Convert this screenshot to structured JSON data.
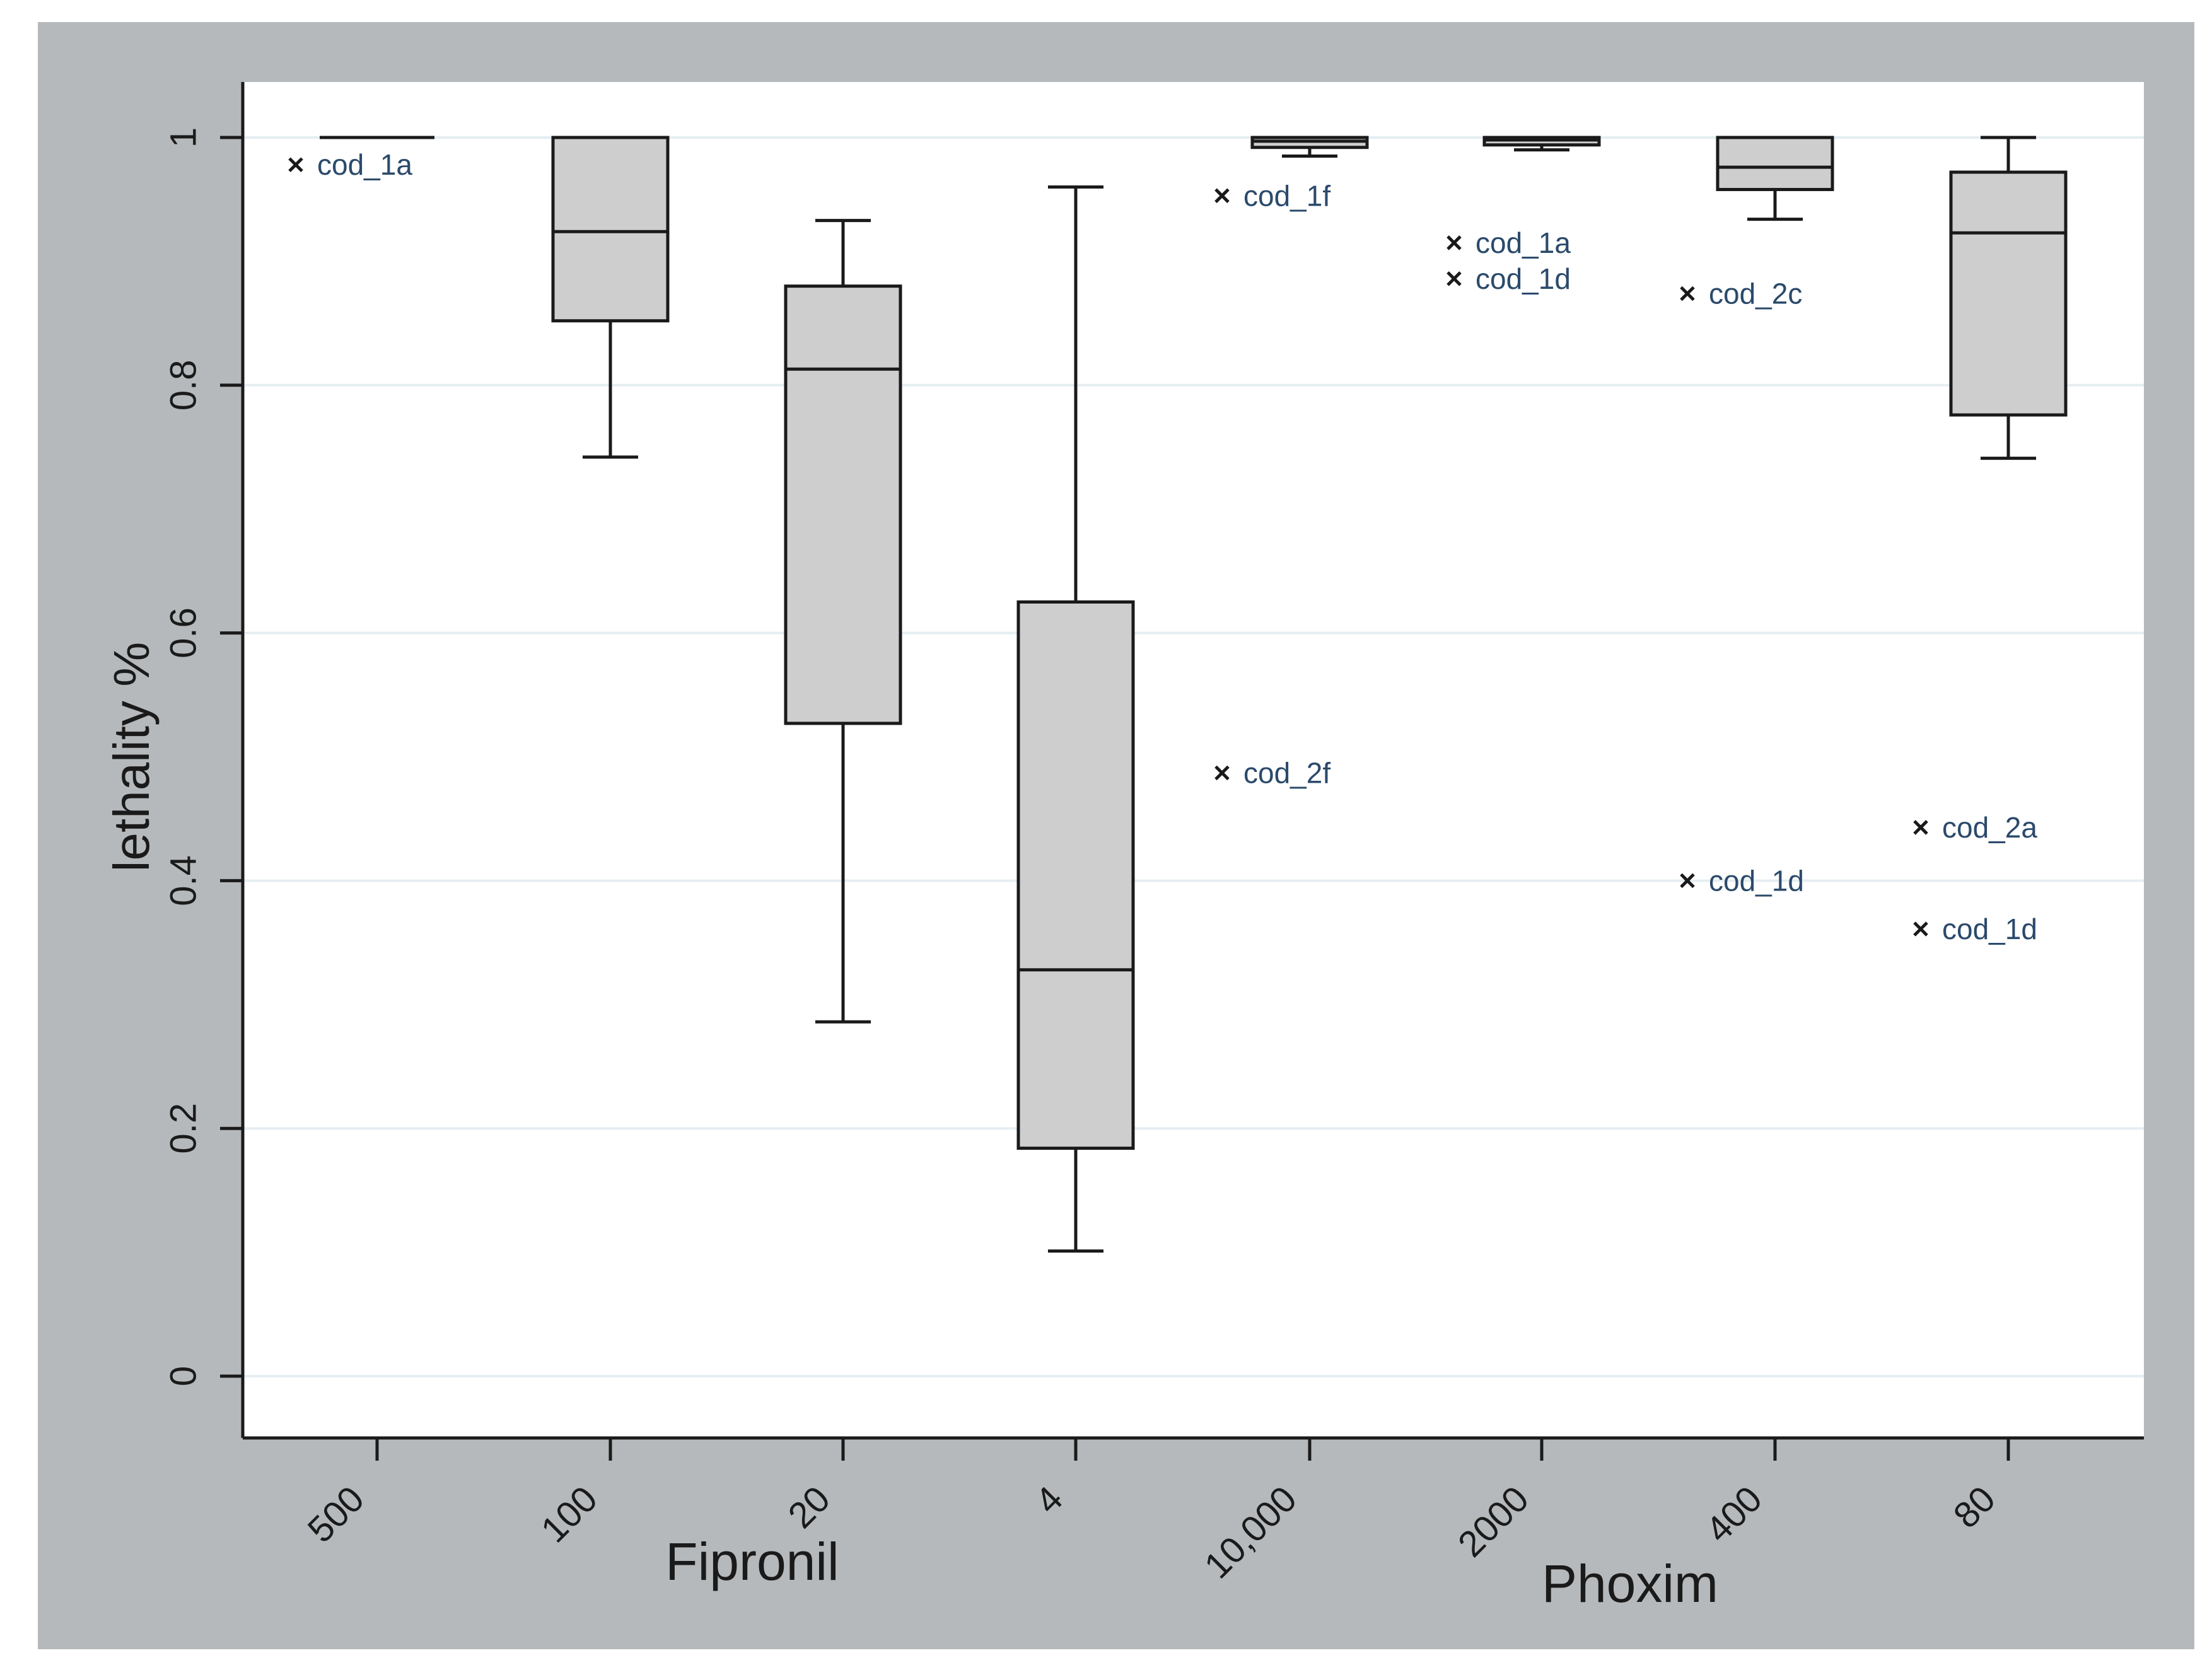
{
  "chart_data": {
    "type": "box",
    "title": "",
    "xlabel": "",
    "ylabel": "lethality %",
    "ylim": [
      0,
      1
    ],
    "yticks": [
      {
        "value": 0,
        "label": "0"
      },
      {
        "value": 0.2,
        "label": "0.2"
      },
      {
        "value": 0.4,
        "label": "0.4"
      },
      {
        "value": 0.6,
        "label": "0.6"
      },
      {
        "value": 0.8,
        "label": "0.8"
      },
      {
        "value": 1,
        "label": "1"
      }
    ],
    "grid": true,
    "groups": [
      {
        "name": "Fipronil",
        "categories": [
          "500",
          "100",
          "20",
          "4"
        ]
      },
      {
        "name": "Phoxim",
        "categories": [
          "10,000",
          "2000",
          "400",
          "80"
        ]
      }
    ],
    "categories": [
      "500",
      "100",
      "20",
      "4",
      "10,000",
      "2000",
      "400",
      "80"
    ],
    "boxes": [
      {
        "category": "500",
        "min": 1.0,
        "q1": 1.0,
        "median": 1.0,
        "q3": 1.0,
        "max": 1.0,
        "outliers": [
          {
            "value": 0.978,
            "label": "cod_1a"
          }
        ]
      },
      {
        "category": "100",
        "min": 0.742,
        "q1": 0.852,
        "median": 0.924,
        "q3": 1.0,
        "max": 1.0,
        "outliers": []
      },
      {
        "category": "20",
        "min": 0.286,
        "q1": 0.527,
        "median": 0.813,
        "q3": 0.88,
        "max": 0.933,
        "outliers": []
      },
      {
        "category": "4",
        "min": 0.101,
        "q1": 0.184,
        "median": 0.328,
        "q3": 0.625,
        "max": 0.96,
        "outliers": []
      },
      {
        "category": "10,000",
        "min": 0.985,
        "q1": 0.992,
        "median": 0.997,
        "q3": 1.0,
        "max": 1.0,
        "outliers": [
          {
            "value": 0.953,
            "label": "cod_1f"
          },
          {
            "value": 0.487,
            "label": "cod_2f"
          }
        ]
      },
      {
        "category": "2000",
        "min": 0.99,
        "q1": 0.994,
        "median": 0.998,
        "q3": 1.0,
        "max": 1.0,
        "outliers": [
          {
            "value": 0.915,
            "label": "cod_1a"
          },
          {
            "value": 0.886,
            "label": "cod_1d"
          }
        ]
      },
      {
        "category": "400",
        "min": 0.934,
        "q1": 0.958,
        "median": 0.976,
        "q3": 1.0,
        "max": 1.0,
        "outliers": [
          {
            "value": 0.874,
            "label": "cod_2c"
          },
          {
            "value": 0.4,
            "label": "cod_1d"
          }
        ]
      },
      {
        "category": "80",
        "min": 0.741,
        "q1": 0.776,
        "median": 0.923,
        "q3": 0.972,
        "max": 1.0,
        "outliers": [
          {
            "value": 0.443,
            "label": "cod_2a"
          },
          {
            "value": 0.361,
            "label": "cod_1d"
          }
        ]
      }
    ],
    "colors": {
      "frame": "#b6b9bb",
      "plot_bg": "#ffffff",
      "box_fill": "#cecece",
      "line": "#1a1a1a",
      "grid": "#e5eef2",
      "outlier_label": "#2b4a6b"
    }
  }
}
